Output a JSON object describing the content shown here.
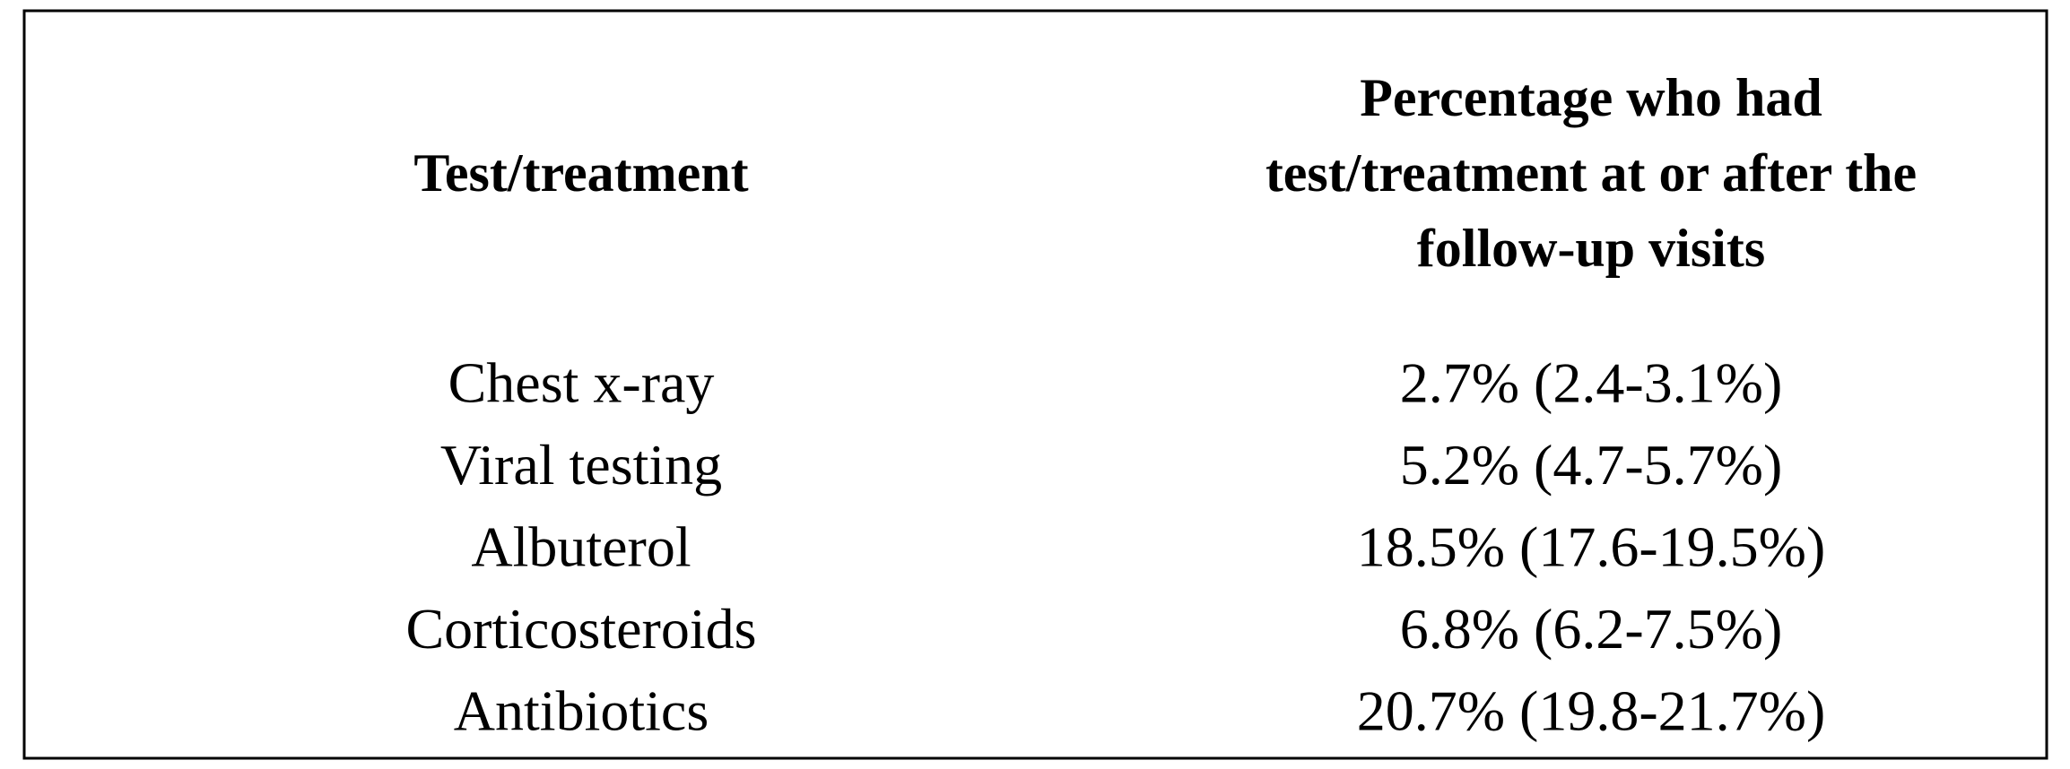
{
  "table": {
    "headers": [
      [
        "Test/treatment"
      ],
      [
        "Percentage who had",
        "test/treatment at or after the",
        "follow-up visits"
      ]
    ],
    "rows": [
      [
        "Chest x-ray",
        "2.7% (2.4-3.1%)"
      ],
      [
        "Viral testing",
        "5.2% (4.7-5.7%)"
      ],
      [
        "Albuterol",
        "18.5% (17.6-19.5%)"
      ],
      [
        "Corticosteroids",
        "6.8% (6.2-7.5%)"
      ],
      [
        "Antibiotics",
        "20.7% (19.8-21.7%)"
      ]
    ]
  }
}
